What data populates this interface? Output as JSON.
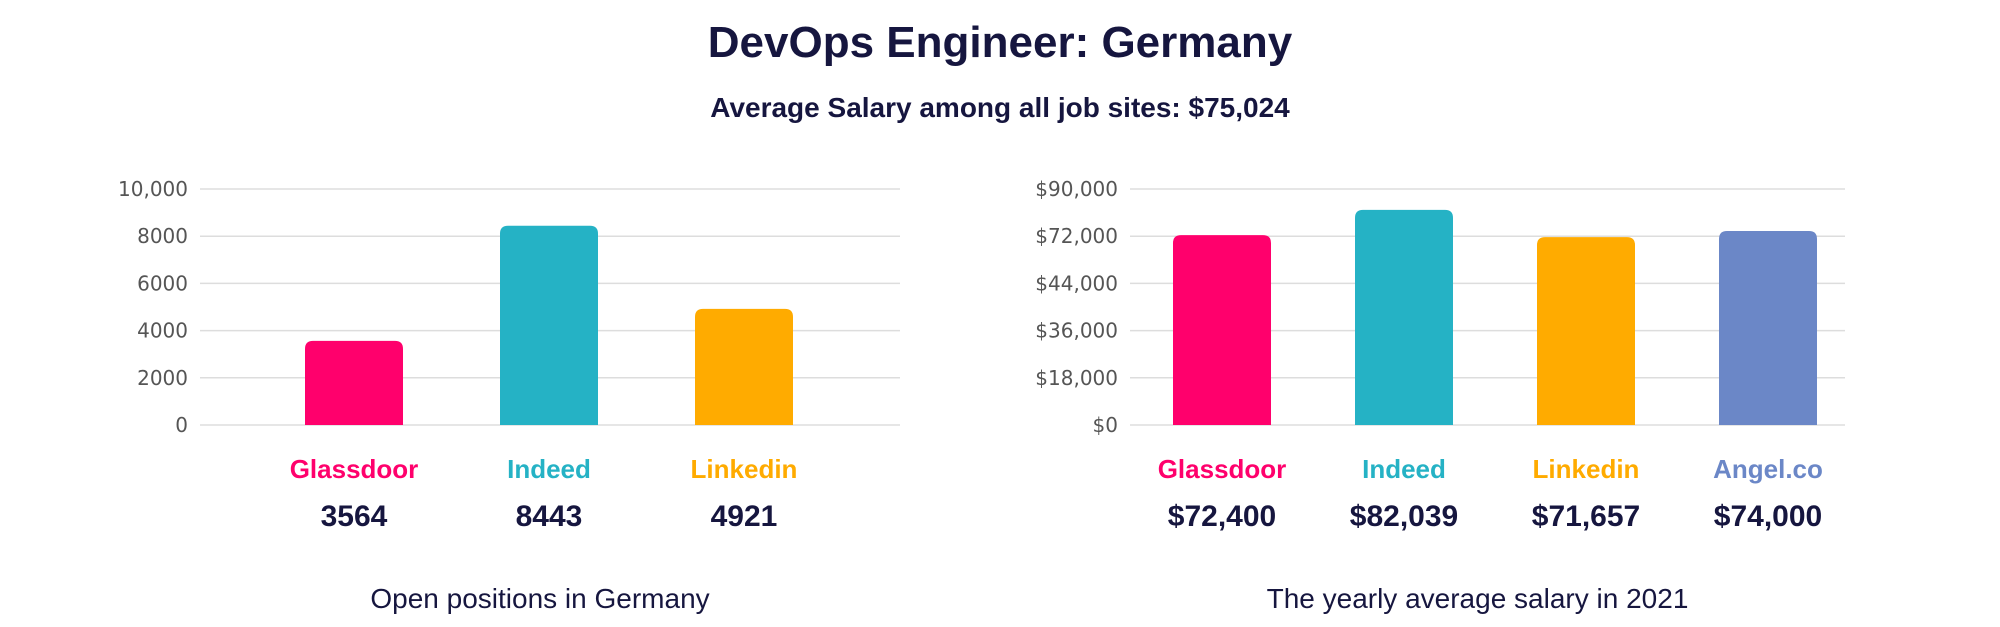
{
  "title": "DevOps Engineer: Germany",
  "subtitle": "Average Salary among all job sites: $75,024",
  "chart_data": [
    {
      "type": "bar",
      "caption": "Open positions in Germany",
      "categories": [
        "Glassdoor",
        "Indeed",
        "Linkedin"
      ],
      "values": [
        3564,
        8443,
        4921
      ],
      "value_labels": [
        "3564",
        "8443",
        "4921"
      ],
      "colors": [
        "#ff006c",
        "#25b2c5",
        "#ffab00"
      ],
      "y_ticks": [
        "0",
        "2000",
        "4000",
        "6000",
        "8000",
        "10,000"
      ],
      "ylim": [
        0,
        10000
      ],
      "grid": true
    },
    {
      "type": "bar",
      "caption": "The yearly average salary in 2021",
      "categories": [
        "Glassdoor",
        "Indeed",
        "Linkedin",
        "Angel.co"
      ],
      "values": [
        72400,
        82039,
        71657,
        74000
      ],
      "value_labels": [
        "$72,400",
        "$82,039",
        "$71,657",
        "$74,000"
      ],
      "colors": [
        "#ff006c",
        "#25b2c5",
        "#ffab00",
        "#6b87c7"
      ],
      "y_ticks": [
        "$0",
        "$18,000",
        "$36,000",
        "$44,000",
        "$72,000",
        "$90,000"
      ],
      "ylim": [
        0,
        90000
      ],
      "grid": true
    }
  ]
}
